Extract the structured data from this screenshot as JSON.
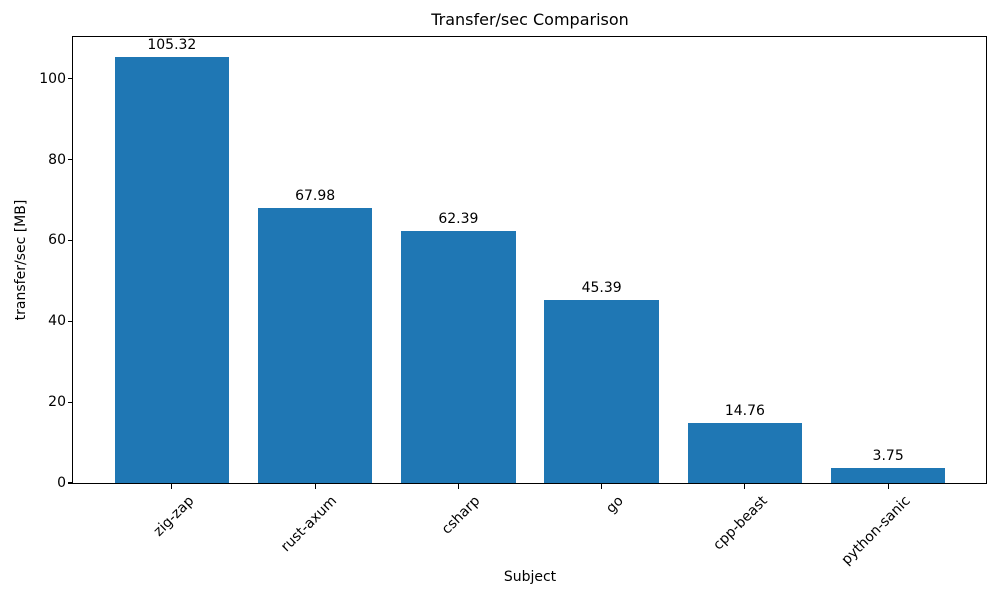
{
  "chart_data": {
    "type": "bar",
    "title": "Transfer/sec Comparison",
    "xlabel": "Subject",
    "ylabel": "transfer/sec [MB]",
    "categories": [
      "zig-zap",
      "rust-axum",
      "csharp",
      "go",
      "cpp-beast",
      "python-sanic"
    ],
    "values": [
      105.32,
      67.98,
      62.39,
      45.39,
      14.76,
      3.75
    ],
    "value_labels": [
      "105.32",
      "67.98",
      "62.39",
      "45.39",
      "14.76",
      "3.75"
    ],
    "yticks": [
      0,
      20,
      40,
      60,
      80,
      100
    ],
    "ylim": [
      0,
      110.59
    ],
    "xlim": [
      -0.69,
      5.69
    ],
    "bar_width": 0.8,
    "bar_color": "#1f77b4",
    "text_color": "#000000",
    "xtick_rotation_deg": 45,
    "grid": false,
    "legend": "none"
  }
}
